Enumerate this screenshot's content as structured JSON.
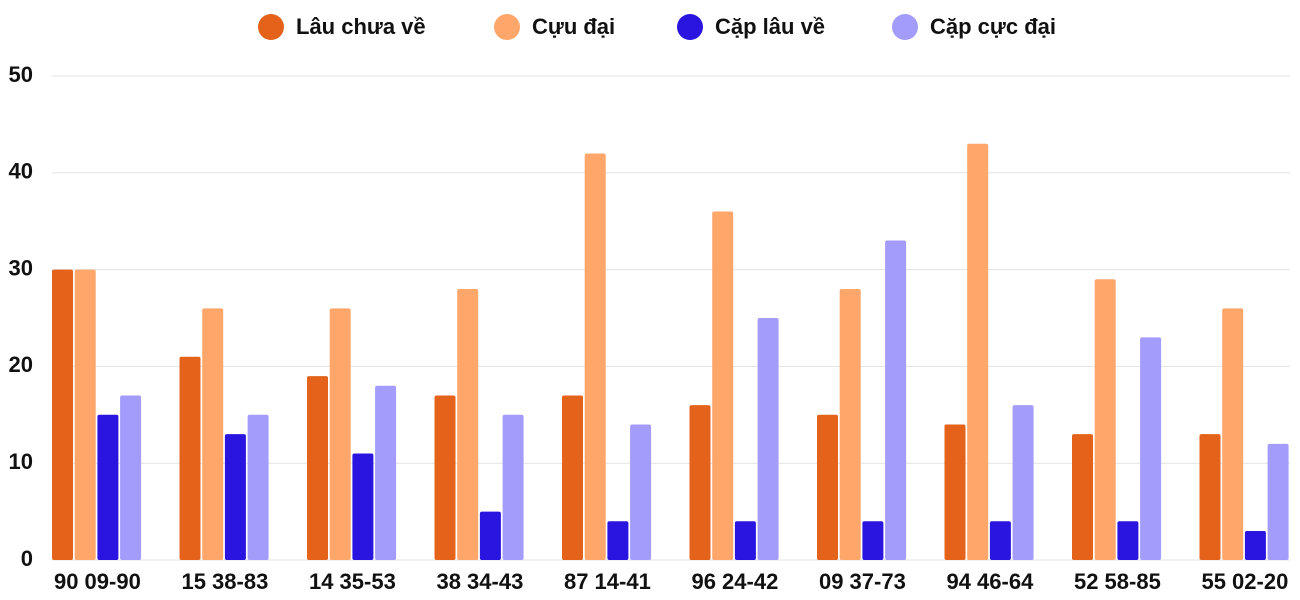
{
  "chart_data": {
    "type": "bar",
    "categories": [
      "90 09-90",
      "15 38-83",
      "14 35-53",
      "38 34-43",
      "87 14-41",
      "96 24-42",
      "09 37-73",
      "94 46-64",
      "52 58-85",
      "55 02-20"
    ],
    "series": [
      {
        "name": "Lâu chưa về",
        "color": "#e4621a",
        "values": [
          30,
          21,
          19,
          17,
          17,
          16,
          15,
          14,
          13,
          13
        ]
      },
      {
        "name": "Cựu đại",
        "color": "#ffa66b",
        "values": [
          30,
          26,
          26,
          28,
          42,
          36,
          28,
          43,
          29,
          26
        ]
      },
      {
        "name": "Cặp lâu về",
        "color": "#2a14e0",
        "values": [
          15,
          13,
          11,
          5,
          4,
          4,
          4,
          4,
          4,
          3
        ]
      },
      {
        "name": "Cặp cực đại",
        "color": "#a39cfb",
        "values": [
          17,
          15,
          18,
          15,
          14,
          25,
          33,
          16,
          23,
          12
        ]
      }
    ],
    "ylim": [
      0,
      50
    ],
    "yticks": [
      0,
      10,
      20,
      30,
      40,
      50
    ],
    "grid": true,
    "legend": "top"
  }
}
